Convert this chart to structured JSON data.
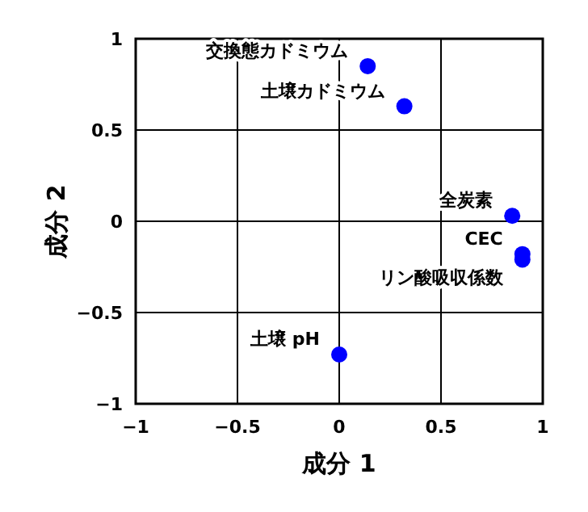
{
  "chart_data": {
    "type": "scatter",
    "xlabel": "成分 1",
    "ylabel": "成分 2",
    "xlim": [
      -1,
      1
    ],
    "ylim": [
      -1,
      1
    ],
    "xticks": [
      -1,
      -0.5,
      0,
      0.5,
      1
    ],
    "yticks": [
      -1,
      -0.5,
      0,
      0.5,
      1
    ],
    "grid": true,
    "marker": "circle",
    "series": [
      {
        "color": "#0000ff",
        "x": [
          0.14,
          0.32,
          0.85,
          0.9,
          0.9,
          0.0
        ],
        "values": [
          0.85,
          0.63,
          0.03,
          -0.18,
          -0.21,
          -0.73
        ]
      }
    ],
    "annotations": [
      {
        "text": "交換態カドミウム",
        "x": 0.14,
        "y": 0.85
      },
      {
        "text": "土壌カドミウム",
        "x": 0.32,
        "y": 0.63
      },
      {
        "text": "全炭素",
        "x": 0.85,
        "y": 0.03
      },
      {
        "text": "CEC",
        "x": 0.9,
        "y": -0.18
      },
      {
        "text": "リン酸吸収係数",
        "x": 0.9,
        "y": -0.21
      },
      {
        "text": "土壌 pH",
        "x": 0.0,
        "y": -0.73
      }
    ]
  }
}
